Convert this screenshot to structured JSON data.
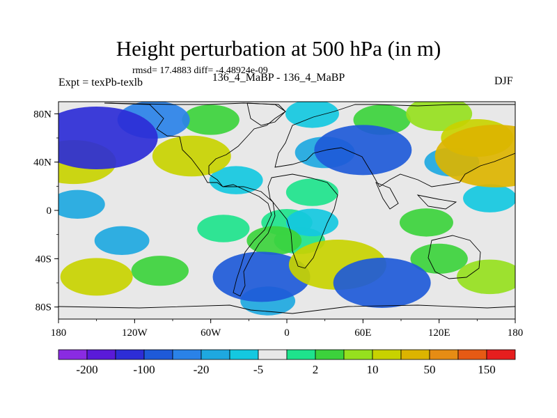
{
  "chart_data": {
    "type": "heatmap",
    "title": "Height perturbation at 500 hPa (in m)",
    "stats_text": "rmsd= 17.4883 diff= -4.48924e-09",
    "experiment_label": "Expt = texPb-texlb",
    "experiment_ids": "136_4_MaBP - 136_4_MaBP",
    "season": "DJF",
    "xlabel": "",
    "ylabel": "",
    "xlim": [
      -180,
      180
    ],
    "ylim": [
      -90,
      90
    ],
    "x_ticks": [
      {
        "value": -180,
        "label": "180"
      },
      {
        "value": -120,
        "label": "120W"
      },
      {
        "value": -60,
        "label": "60W"
      },
      {
        "value": 0,
        "label": "0"
      },
      {
        "value": 60,
        "label": "60E"
      },
      {
        "value": 120,
        "label": "120E"
      },
      {
        "value": 180,
        "label": "180"
      }
    ],
    "y_ticks": [
      {
        "value": 80,
        "label": "80N"
      },
      {
        "value": 40,
        "label": "40N"
      },
      {
        "value": 0,
        "label": "0"
      },
      {
        "value": -40,
        "label": "40S"
      },
      {
        "value": -80,
        "label": "80S"
      }
    ],
    "colorbar": {
      "colors": [
        "#8a2be2",
        "#5a1ad8",
        "#2d2dd6",
        "#1e5ad8",
        "#2a82e8",
        "#1ea8e0",
        "#14c8e0",
        "#e8e8e8",
        "#1ee38c",
        "#3cd23c",
        "#96e01e",
        "#c8d200",
        "#dcb400",
        "#e68c14",
        "#e65a14",
        "#e61e1e"
      ],
      "tick_labels": [
        "-200",
        "-100",
        "-20",
        "-5",
        "2",
        "10",
        "50",
        "150"
      ]
    },
    "anomalies": [
      {
        "lon": -150,
        "lat": 60,
        "value": -60
      },
      {
        "lon": -105,
        "lat": 75,
        "value": -20
      },
      {
        "lon": -168,
        "lat": 40,
        "value": 30
      },
      {
        "lon": -165,
        "lat": 5,
        "value": -6
      },
      {
        "lon": -75,
        "lat": 45,
        "value": 25
      },
      {
        "lon": -60,
        "lat": 75,
        "value": 8
      },
      {
        "lon": -40,
        "lat": 25,
        "value": -5
      },
      {
        "lon": -50,
        "lat": -15,
        "value": 4
      },
      {
        "lon": -10,
        "lat": -25,
        "value": 6
      },
      {
        "lon": -130,
        "lat": -25,
        "value": -6
      },
      {
        "lon": -150,
        "lat": -55,
        "value": 20
      },
      {
        "lon": -100,
        "lat": -50,
        "value": 8
      },
      {
        "lon": -20,
        "lat": -55,
        "value": -40
      },
      {
        "lon": -15,
        "lat": -75,
        "value": -6
      },
      {
        "lon": 20,
        "lat": 80,
        "value": -5
      },
      {
        "lon": 30,
        "lat": 48,
        "value": -10
      },
      {
        "lon": 60,
        "lat": 50,
        "value": -40
      },
      {
        "lon": 75,
        "lat": 75,
        "value": 8
      },
      {
        "lon": 120,
        "lat": 80,
        "value": 15
      },
      {
        "lon": 150,
        "lat": 60,
        "value": 20
      },
      {
        "lon": 165,
        "lat": 45,
        "value": 60
      },
      {
        "lon": 130,
        "lat": 40,
        "value": -6
      },
      {
        "lon": 20,
        "lat": 15,
        "value": 4
      },
      {
        "lon": 110,
        "lat": -10,
        "value": 5
      },
      {
        "lon": 0,
        "lat": -10,
        "value": 3
      },
      {
        "lon": 40,
        "lat": -45,
        "value": 40
      },
      {
        "lon": 20,
        "lat": -10,
        "value": -4
      },
      {
        "lon": 75,
        "lat": -60,
        "value": -40
      },
      {
        "lon": 120,
        "lat": -40,
        "value": 8
      },
      {
        "lon": 160,
        "lat": -55,
        "value": 15
      },
      {
        "lon": 160,
        "lat": 10,
        "value": -5
      },
      {
        "lon": 10,
        "lat": -25,
        "value": 3
      }
    ]
  }
}
